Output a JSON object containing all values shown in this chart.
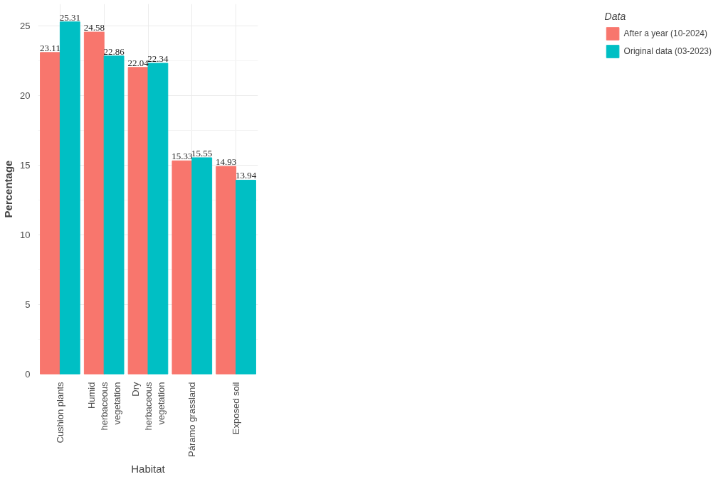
{
  "chart_data": {
    "type": "bar",
    "xlabel": "Habitat",
    "ylabel": "Percentage",
    "legend_title": "Data",
    "categories": [
      "Cushion plants",
      "Humid\nherbaceous\nvegetation",
      "Dry\nherbaceous\nvegetation",
      "Páramo grassland",
      "Exposed soil"
    ],
    "series": [
      {
        "name": "After a year (10-2024)",
        "color": "#f8766d",
        "values": [
          23.11,
          24.58,
          22.04,
          15.33,
          14.93
        ]
      },
      {
        "name": "Original data (03-2023)",
        "color": "#00bfc4",
        "values": [
          25.31,
          22.86,
          22.34,
          15.55,
          13.94
        ]
      }
    ],
    "ylim": [
      0,
      26.6
    ],
    "yticks": [
      0,
      5,
      10,
      15,
      20,
      25
    ],
    "grid": true,
    "legend": "right",
    "data_labels": true
  }
}
